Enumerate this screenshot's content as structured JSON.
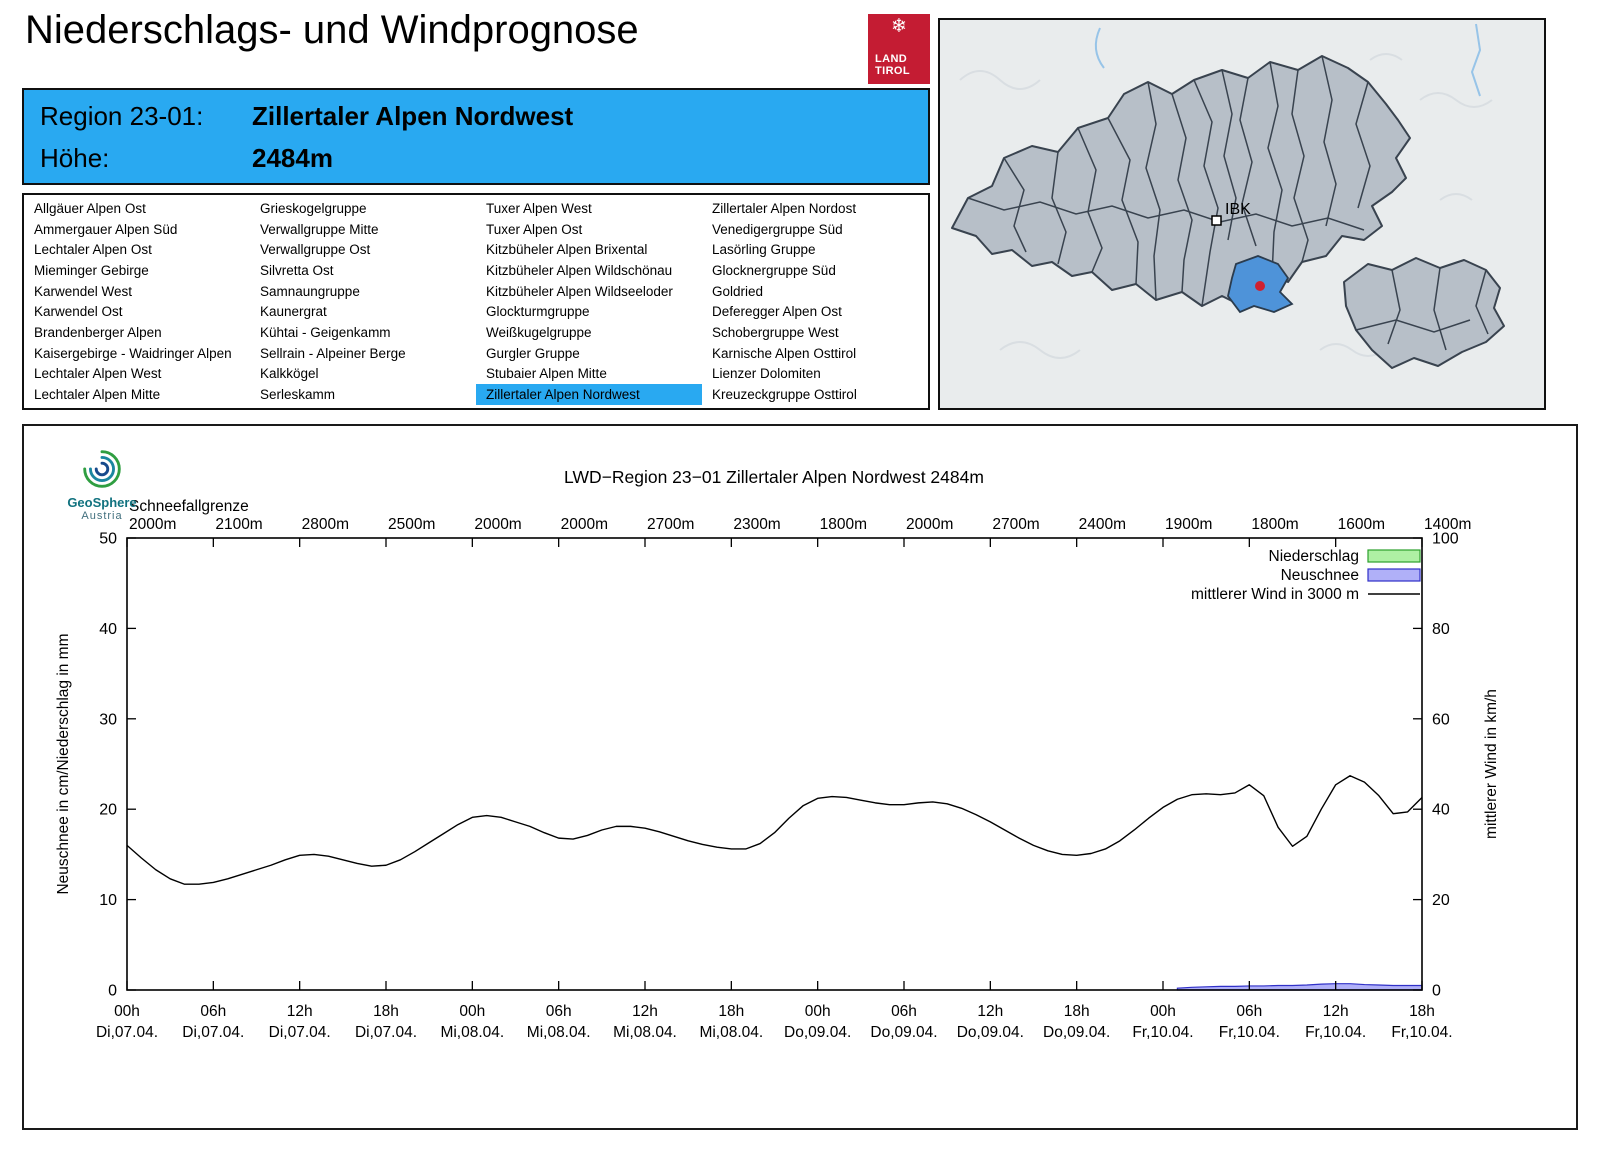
{
  "header": {
    "title": "Niederschlags- und Windprognose",
    "logo": {
      "line1": "LAND",
      "line2": "TIROL"
    }
  },
  "banner": {
    "region_label": "Region 23-01:",
    "region_value": "Zillertaler Alpen Nordwest",
    "altitude_label": "Höhe:",
    "altitude_value": "2484m",
    "accent_color": "#29a9f1"
  },
  "region_table": {
    "selected": "Zillertaler Alpen Nordwest",
    "columns": [
      [
        "Allgäuer Alpen Ost",
        "Ammergauer Alpen Süd",
        "Lechtaler Alpen Ost",
        "Mieminger Gebirge",
        "Karwendel West",
        "Karwendel Ost",
        "Brandenberger Alpen",
        "Kaisergebirge - Waidringer Alpen",
        "Lechtaler Alpen West",
        "Lechtaler Alpen Mitte"
      ],
      [
        "Grieskogelgruppe",
        "Verwallgruppe Mitte",
        "Verwallgruppe Ost",
        "Silvretta Ost",
        "Samnaungruppe",
        "Kaunergrat",
        "Kühtai - Geigenkamm",
        "Sellrain - Alpeiner Berge",
        "Kalkkögel",
        "Serleskamm"
      ],
      [
        "Tuxer Alpen West",
        "Tuxer Alpen Ost",
        "Kitzbüheler Alpen Brixental",
        "Kitzbüheler Alpen Wildschönau",
        "Kitzbüheler Alpen Wildseeloder",
        "Glockturmgruppe",
        "Weißkugelgruppe",
        "Gurgler Gruppe",
        "Stubaier Alpen Mitte",
        "Zillertaler Alpen Nordwest"
      ],
      [
        "Zillertaler Alpen Nordost",
        "Venedigergruppe Süd",
        "Lasörling Gruppe",
        "Glocknergruppe Süd",
        "Goldried",
        "Deferegger Alpen Ost",
        "Schobergruppe West",
        "Karnische Alpen Osttirol",
        "Lienzer Dolomiten",
        "Kreuzeckgruppe Osttirol"
      ]
    ]
  },
  "map": {
    "city_label": "IBK",
    "selected_region_color": "#4e93d9"
  },
  "geosphere": {
    "name": "GeoSphere",
    "country": "Austria"
  },
  "chart": {
    "title": "LWD−Region 23−01 Zillertaler Alpen Nordwest 2484m",
    "snowline_label": "Schneefallgrenze",
    "ylabel_left": "Neuschnee in cm/Niederschlag in mm",
    "ylabel_right": "mittlerer Wind in km/h",
    "legend": [
      {
        "label": "Niederschlag",
        "type": "box",
        "fill": "#aef0a4",
        "stroke": "#2ca02c"
      },
      {
        "label": "Neuschnee",
        "type": "box",
        "fill": "#b0b0f8",
        "stroke": "#3030c8"
      },
      {
        "label": "mittlerer Wind in 3000 m",
        "type": "line",
        "stroke": "#000000"
      }
    ]
  },
  "chart_data": {
    "type": "line",
    "title": "LWD−Region 23−01 Zillertaler Alpen Nordwest 2484m",
    "xlim": [
      0,
      90
    ],
    "ylim_left": [
      0,
      50
    ],
    "ylim_right": [
      0,
      100
    ],
    "yticks_left": [
      0,
      10,
      20,
      30,
      40,
      50
    ],
    "yticks_right": [
      0,
      20,
      40,
      60,
      80,
      100
    ],
    "grid": false,
    "legend_position": "top-right",
    "x_ticks": [
      {
        "time": "00h",
        "date": "Di,07.04."
      },
      {
        "time": "06h",
        "date": "Di,07.04."
      },
      {
        "time": "12h",
        "date": "Di,07.04."
      },
      {
        "time": "18h",
        "date": "Di,07.04."
      },
      {
        "time": "00h",
        "date": "Mi,08.04."
      },
      {
        "time": "06h",
        "date": "Mi,08.04."
      },
      {
        "time": "12h",
        "date": "Mi,08.04."
      },
      {
        "time": "18h",
        "date": "Mi,08.04."
      },
      {
        "time": "00h",
        "date": "Do,09.04."
      },
      {
        "time": "06h",
        "date": "Do,09.04."
      },
      {
        "time": "12h",
        "date": "Do,09.04."
      },
      {
        "time": "18h",
        "date": "Do,09.04."
      },
      {
        "time": "00h",
        "date": "Fr,10.04."
      },
      {
        "time": "06h",
        "date": "Fr,10.04."
      },
      {
        "time": "12h",
        "date": "Fr,10.04."
      },
      {
        "time": "18h",
        "date": "Fr,10.04."
      }
    ],
    "snowline_m": [
      2000,
      2100,
      2800,
      2500,
      2000,
      2000,
      2700,
      2300,
      1800,
      2000,
      2700,
      2400,
      1900,
      1800,
      1600,
      1400
    ],
    "series": [
      {
        "name": "mittlerer Wind in 3000 m",
        "axis": "right",
        "unit": "km/h",
        "style": "line",
        "x_start": 0,
        "x_step": 1,
        "values": [
          32.0,
          29.2,
          26.6,
          24.6,
          23.4,
          23.4,
          23.8,
          24.6,
          25.6,
          26.6,
          27.6,
          28.8,
          29.8,
          30.0,
          29.6,
          28.8,
          28.0,
          27.4,
          27.6,
          28.8,
          30.6,
          32.6,
          34.6,
          36.6,
          38.2,
          38.6,
          38.2,
          37.2,
          36.2,
          34.8,
          33.6,
          33.4,
          34.2,
          35.4,
          36.2,
          36.2,
          35.8,
          35.0,
          34.0,
          33.0,
          32.2,
          31.6,
          31.2,
          31.2,
          32.4,
          34.8,
          38.0,
          40.8,
          42.4,
          42.8,
          42.6,
          42.0,
          41.4,
          41.0,
          41.0,
          41.4,
          41.6,
          41.2,
          40.2,
          38.8,
          37.2,
          35.4,
          33.6,
          32.0,
          30.8,
          30.0,
          29.8,
          30.2,
          31.2,
          33.0,
          35.4,
          38.0,
          40.4,
          42.2,
          43.2,
          43.4,
          43.2,
          43.6,
          45.4,
          43.0,
          36.0,
          31.8,
          34.0,
          40.0,
          45.4,
          47.4,
          46.0,
          43.0,
          39.0,
          39.4,
          42.6
        ]
      },
      {
        "name": "Neuschnee",
        "axis": "left",
        "unit": "cm",
        "style": "area",
        "x_start": 73,
        "x_step": 1,
        "values": [
          0.2,
          0.3,
          0.35,
          0.4,
          0.4,
          0.45,
          0.45,
          0.5,
          0.5,
          0.55,
          0.65,
          0.7,
          0.7,
          0.6,
          0.55,
          0.5,
          0.5,
          0.5
        ]
      },
      {
        "name": "Niederschlag",
        "axis": "left",
        "unit": "mm",
        "style": "area",
        "x_start": 0,
        "x_step": 1,
        "values": []
      }
    ]
  }
}
